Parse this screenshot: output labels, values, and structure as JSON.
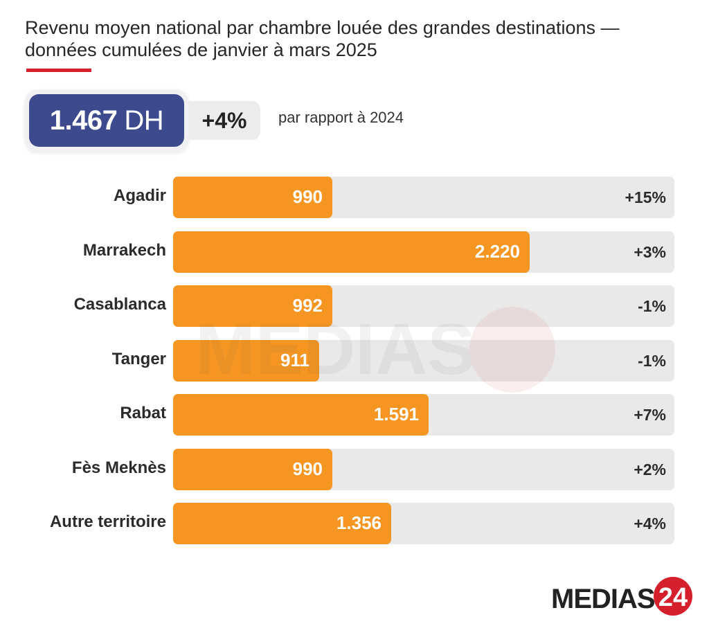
{
  "header": {
    "title": "Revenu moyen national par chambre louée des grandes destinations  — données cumulées de janvier à mars 2025"
  },
  "kpi": {
    "value": "1.467",
    "unit": "DH",
    "change": "+4%",
    "note": "par rapport à 2024"
  },
  "colors": {
    "bar": "#f59622",
    "track": "#e9e9e9",
    "kpi": "#3d4a8e",
    "accent": "#d61f2c"
  },
  "chart_data": {
    "type": "bar",
    "orientation": "horizontal",
    "title": "",
    "xlim": [
      0,
      3120
    ],
    "categories": [
      "Agadir",
      "Marrakech",
      "Casablanca",
      "Tanger",
      "Rabat",
      "Fès Meknès",
      "Autre territoire"
    ],
    "values": [
      990,
      2220,
      992,
      911,
      1591,
      990,
      1356
    ],
    "value_labels": [
      "990",
      "2.220",
      "992",
      "911",
      "1.591",
      "990",
      "1.356"
    ],
    "changes": [
      "+15%",
      "+3%",
      "-1%",
      "-1%",
      "+7%",
      "+2%",
      "+4%"
    ]
  },
  "brand": {
    "logo_text": "MEDIAS",
    "logo_number": "24"
  }
}
